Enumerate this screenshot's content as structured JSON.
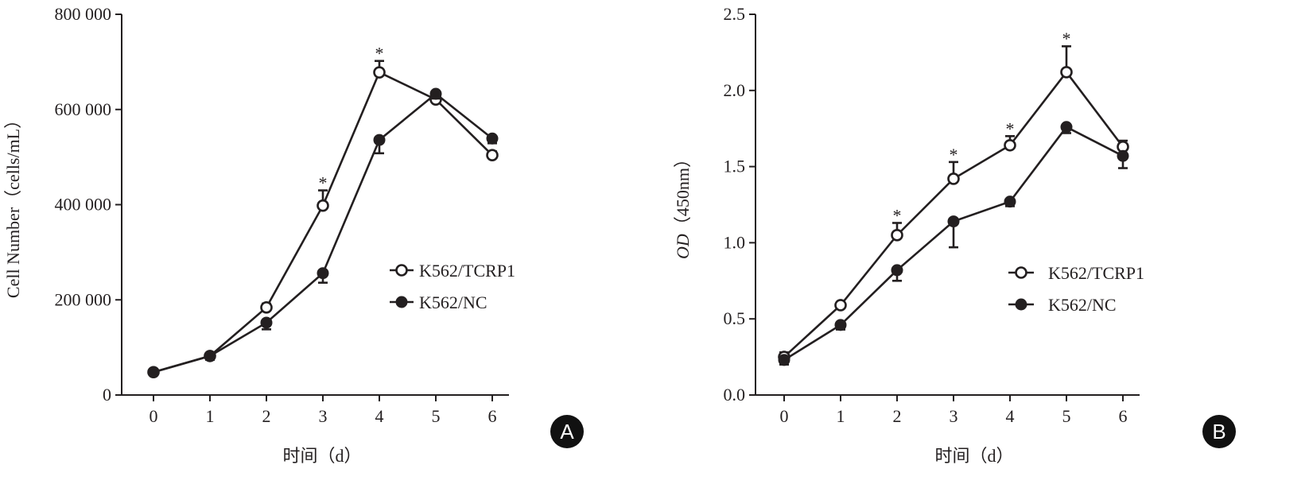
{
  "chart_data": [
    {
      "type": "line",
      "panel": "A",
      "xlabel": "时间（d）",
      "ylabel": "Cell Number（cells/mL）",
      "x": [
        0,
        1,
        2,
        3,
        4,
        5,
        6
      ],
      "xticks": [
        "0",
        "1",
        "2",
        "3",
        "4",
        "5",
        "6"
      ],
      "ylim": [
        0,
        800000
      ],
      "yticks": [
        0,
        200000,
        400000,
        600000,
        800000
      ],
      "ytick_labels": [
        "0",
        "200 000",
        "400 000",
        "600 000",
        "800 000"
      ],
      "grid": false,
      "legend_position": "center-right",
      "series": [
        {
          "name": "K562/TCRP1",
          "marker": "open-circle",
          "values": [
            48000,
            82000,
            184000,
            398000,
            678000,
            621000,
            504000
          ],
          "error": [
            4000,
            6000,
            8000,
            32000,
            24000,
            10000,
            8000
          ],
          "error_dir": "up"
        },
        {
          "name": "K562/NC",
          "marker": "filled-circle",
          "values": [
            48000,
            82000,
            152000,
            256000,
            536000,
            633000,
            539000
          ],
          "error": [
            4000,
            8000,
            14000,
            20000,
            28000,
            10000,
            10000
          ],
          "error_dir": "down"
        }
      ],
      "significance_x": [
        3,
        4
      ],
      "significance_label": "*"
    },
    {
      "type": "line",
      "panel": "B",
      "xlabel": "时间（d）",
      "ylabel_italic": "OD",
      "ylabel": "（450nm）",
      "x": [
        0,
        1,
        2,
        3,
        4,
        5,
        6
      ],
      "xticks": [
        "0",
        "1",
        "2",
        "3",
        "4",
        "5",
        "6"
      ],
      "ylim": [
        0,
        2.5
      ],
      "yticks": [
        0,
        0.5,
        1.0,
        1.5,
        2.0,
        2.5
      ],
      "ytick_labels": [
        "0.0",
        "0.5",
        "1.0",
        "1.5",
        "2.0",
        "2.5"
      ],
      "grid": false,
      "legend_position": "center-right",
      "series": [
        {
          "name": "K562/TCRP1",
          "marker": "open-circle",
          "values": [
            0.25,
            0.59,
            1.05,
            1.42,
            1.64,
            2.12,
            1.63
          ],
          "error": [
            0.03,
            0.02,
            0.08,
            0.11,
            0.06,
            0.17,
            0.04
          ],
          "error_dir": "up"
        },
        {
          "name": "K562/NC",
          "marker": "filled-circle",
          "values": [
            0.23,
            0.46,
            0.82,
            1.14,
            1.27,
            1.76,
            1.57
          ],
          "error": [
            0.03,
            0.03,
            0.07,
            0.17,
            0.03,
            0.04,
            0.08
          ],
          "error_dir": "down"
        }
      ],
      "significance_x": [
        2,
        3,
        4,
        5
      ],
      "significance_label": "*"
    }
  ]
}
